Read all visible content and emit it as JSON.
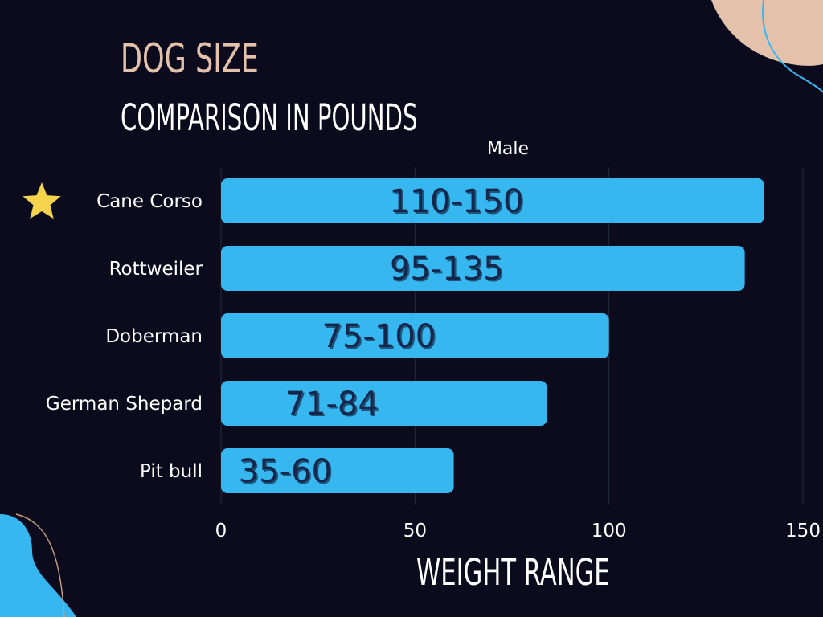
{
  "title_line1": "Dog Size",
  "title_line2": "Comparison in Pounds",
  "colors": {
    "background": "#0b0b1d",
    "bar": "#36b7f0",
    "bar_label": "#15264a",
    "accent_peach": "#e3c1aa",
    "star": "#f5d34a"
  },
  "highlight_icon": "star-icon",
  "chart_data": {
    "type": "bar",
    "orientation": "horizontal",
    "title": "Male",
    "xlabel": "WEIGHT RANGE",
    "categories": [
      "Cane Corso",
      "Rottweiler",
      "Doberman",
      "German Shepard",
      "Pit bull"
    ],
    "series": [
      {
        "name": "Male",
        "values": [
          140,
          135,
          100,
          84,
          60
        ],
        "labels": [
          "110-150",
          "95-135",
          "75-100",
          "71-84",
          "35-60"
        ]
      }
    ],
    "xlim": [
      0,
      150
    ],
    "xticks": [
      0,
      50,
      100,
      150
    ],
    "grid": true,
    "highlighted_category": "Cane Corso"
  }
}
